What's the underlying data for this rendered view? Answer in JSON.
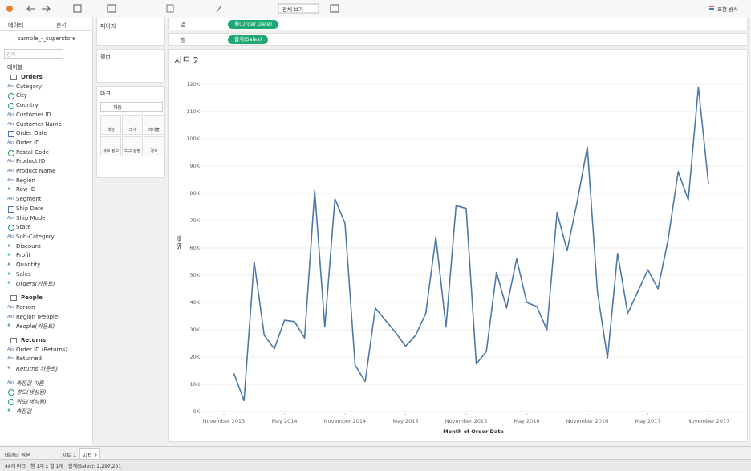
{
  "toolbar": {
    "fit": "전체 보기",
    "show_me": "표현 방식"
  },
  "data_pane": {
    "tabs": [
      "데이터",
      "분석"
    ],
    "source": "sample_-_superstore",
    "search": "검색",
    "tables_label": "테이블",
    "groups": [
      {
        "name": "Orders",
        "fields": [
          {
            "icon": "Abc",
            "name": "Category"
          },
          {
            "icon": "geo",
            "name": "City"
          },
          {
            "icon": "geo",
            "name": "Country"
          },
          {
            "icon": "Abc",
            "name": "Customer ID"
          },
          {
            "icon": "Abc",
            "name": "Customer Name"
          },
          {
            "icon": "date",
            "name": "Order Date"
          },
          {
            "icon": "Abc",
            "name": "Order ID"
          },
          {
            "icon": "geo",
            "name": "Postal Code"
          },
          {
            "icon": "Abc",
            "name": "Product ID"
          },
          {
            "icon": "Abc",
            "name": "Product Name"
          },
          {
            "icon": "Abc",
            "name": "Region"
          },
          {
            "icon": "#",
            "name": "Row ID"
          },
          {
            "icon": "Abc",
            "name": "Segment"
          },
          {
            "icon": "date",
            "name": "Ship Date"
          },
          {
            "icon": "Abc",
            "name": "Ship Mode"
          },
          {
            "icon": "geo",
            "name": "State"
          },
          {
            "icon": "Abc",
            "name": "Sub-Category"
          },
          {
            "icon": "#",
            "name": "Discount"
          },
          {
            "icon": "#",
            "name": "Profit"
          },
          {
            "icon": "#",
            "name": "Quantity"
          },
          {
            "icon": "#",
            "name": "Sales"
          },
          {
            "icon": "#",
            "name": "Orders(카운트)",
            "italic": true
          }
        ]
      },
      {
        "name": "People",
        "fields": [
          {
            "icon": "Abc",
            "name": "Person"
          },
          {
            "icon": "Abc",
            "name": "Region (People)"
          },
          {
            "icon": "#",
            "name": "People(카운트)",
            "italic": true
          }
        ]
      },
      {
        "name": "Returns",
        "fields": [
          {
            "icon": "Abc",
            "name": "Order ID (Returns)"
          },
          {
            "icon": "Abc",
            "name": "Returned"
          },
          {
            "icon": "#",
            "name": "Returns(카운트)",
            "italic": true
          }
        ]
      }
    ],
    "extra_fields": [
      {
        "icon": "Abc",
        "name": "측정값 이름",
        "italic": true
      },
      {
        "icon": "geo",
        "name": "경도(생성됨)",
        "italic": true
      },
      {
        "icon": "geo",
        "name": "위도(생성됨)",
        "italic": true
      },
      {
        "icon": "#",
        "name": "측정값",
        "italic": true
      }
    ]
  },
  "shelves": {
    "pages": "페이지",
    "columns": "열",
    "columns_pill": "월(Order Date)",
    "rows": "행",
    "rows_pill": "합계(Sales)",
    "filters": "필터",
    "marks": "마크",
    "mark_type": "자동",
    "mark_buttons": [
      "색상",
      "크기",
      "레이블",
      "세부 정보",
      "도구 설명",
      "경로"
    ]
  },
  "chart_data": {
    "type": "line",
    "title": "시트 2",
    "x_label": "Month of Order Date",
    "y_label": "Sales",
    "color": "#4e79a7",
    "x": [
      "2013-12",
      "2014-01",
      "2014-02",
      "2014-03",
      "2014-04",
      "2014-05",
      "2014-06",
      "2014-07",
      "2014-08",
      "2014-09",
      "2014-10",
      "2014-11",
      "2014-12",
      "2015-01",
      "2015-02",
      "2015-03",
      "2015-04",
      "2015-05",
      "2015-06",
      "2015-07",
      "2015-08",
      "2015-09",
      "2015-10",
      "2015-11",
      "2015-12",
      "2016-01",
      "2016-02",
      "2016-03",
      "2016-04",
      "2016-05",
      "2016-06",
      "2016-07",
      "2016-08",
      "2016-09",
      "2016-10",
      "2016-11",
      "2016-12",
      "2017-01",
      "2017-02",
      "2017-03",
      "2017-04",
      "2017-05",
      "2017-06",
      "2017-07",
      "2017-08",
      "2017-09",
      "2017-10",
      "2017-11"
    ],
    "values": [
      14000,
      4000,
      55000,
      28000,
      23000,
      33500,
      33000,
      27000,
      81000,
      31000,
      78000,
      69000,
      17000,
      11000,
      38000,
      33500,
      29000,
      24000,
      28000,
      36000,
      64000,
      31000,
      75500,
      74500,
      17500,
      22000,
      51000,
      38000,
      56000,
      40000,
      38500,
      30000,
      73000,
      59000,
      77000,
      97000,
      44000,
      19500,
      58000,
      36000,
      44000,
      52000,
      45000,
      63000,
      88000,
      77600,
      119000,
      83500
    ],
    "xlim": [
      "2013-10",
      "2017-12"
    ],
    "xticks": [
      {
        "value": "2013-11",
        "label": "November 2013"
      },
      {
        "value": "2014-05",
        "label": "May 2014"
      },
      {
        "value": "2014-11",
        "label": "November 2014"
      },
      {
        "value": "2015-05",
        "label": "May 2015"
      },
      {
        "value": "2015-11",
        "label": "November 2015"
      },
      {
        "value": "2016-05",
        "label": "May 2016"
      },
      {
        "value": "2016-11",
        "label": "November 2016"
      },
      {
        "value": "2017-05",
        "label": "May 2017"
      },
      {
        "value": "2017-11",
        "label": "November 2017"
      }
    ],
    "ylim": [
      0,
      120000
    ],
    "yticks": [
      {
        "value": 0,
        "label": "0K"
      },
      {
        "value": 10000,
        "label": "10K"
      },
      {
        "value": 20000,
        "label": "20K"
      },
      {
        "value": 30000,
        "label": "30K"
      },
      {
        "value": 40000,
        "label": "40K"
      },
      {
        "value": 50000,
        "label": "50K"
      },
      {
        "value": 60000,
        "label": "60K"
      },
      {
        "value": 70000,
        "label": "70K"
      },
      {
        "value": 80000,
        "label": "80K"
      },
      {
        "value": 90000,
        "label": "90K"
      },
      {
        "value": 100000,
        "label": "100K"
      },
      {
        "value": 110000,
        "label": "110K"
      },
      {
        "value": 120000,
        "label": "120K"
      }
    ],
    "grid": true
  },
  "tabs": [
    "데이터 원본",
    "시트 1",
    "시트 2"
  ],
  "status": [
    "48개 마크",
    "행 1개 x 열 1개",
    "합계(Sales): 2,297,201"
  ]
}
